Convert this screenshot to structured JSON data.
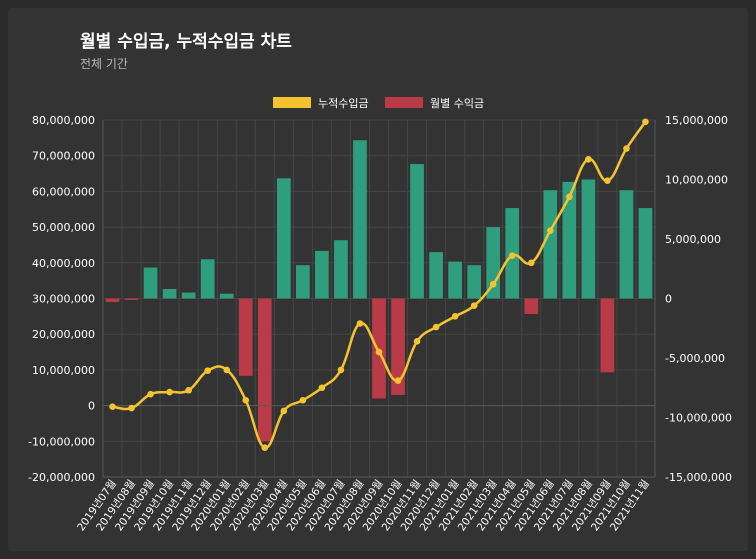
{
  "header": {
    "title": "월별 수입금, 누적수입금 차트",
    "subtitle": "전체 기간"
  },
  "chart_data": {
    "type": "bar+line",
    "categories": [
      "2019년07월",
      "2019년08월",
      "2019년09월",
      "2019년10월",
      "2019년11월",
      "2019년12월",
      "2020년01월",
      "2020년02월",
      "2020년03월",
      "2020년04월",
      "2020년05월",
      "2020년06월",
      "2020년07월",
      "2020년08월",
      "2020년09월",
      "2020년10월",
      "2020년11월",
      "2020년12월",
      "2021년01월",
      "2021년02월",
      "2021년03월",
      "2021년04월",
      "2021년05월",
      "2021년06월",
      "2021년07월",
      "2021년08월",
      "2021년09월",
      "2021년10월",
      "2021년11월"
    ],
    "series": [
      {
        "name": "누적수입금",
        "type": "line",
        "axis": "left",
        "color": "#f4c430",
        "values": [
          -300000,
          -700000,
          3200000,
          3800000,
          4300000,
          9800000,
          10000000,
          1500000,
          -11800000,
          -1500000,
          1500000,
          5000000,
          10000000,
          23000000,
          15000000,
          7000000,
          18000000,
          22000000,
          25000000,
          28000000,
          34000000,
          42000000,
          40000000,
          49000000,
          58500000,
          69000000,
          63000000,
          72000000,
          79500000
        ]
      },
      {
        "name": "월별 수익금",
        "type": "bar",
        "axis": "right",
        "color_positive": "#2e9e7e",
        "color_negative": "#b83b47",
        "values": [
          -300000,
          -100000,
          2600000,
          800000,
          500000,
          3300000,
          400000,
          -6500000,
          -12000000,
          10100000,
          2800000,
          4000000,
          4900000,
          13300000,
          -8400000,
          -8100000,
          11300000,
          3900000,
          3100000,
          2800000,
          6000000,
          7600000,
          -1300000,
          9100000,
          9800000,
          10000000,
          -6200000,
          9100000,
          7600000
        ]
      }
    ],
    "left_axis": {
      "min": -20000000,
      "max": 80000000,
      "step": 10000000,
      "tick_labels": [
        "-20,000,000",
        "-10,000,000",
        "0",
        "10,000,000",
        "20,000,000",
        "30,000,000",
        "40,000,000",
        "50,000,000",
        "60,000,000",
        "70,000,000",
        "80,000,000"
      ]
    },
    "right_axis": {
      "min": -15000000,
      "max": 15000000,
      "step": 5000000,
      "tick_labels": [
        "-15,000,000",
        "-10,000,000",
        "-5,000,000",
        "0",
        "5,000,000",
        "10,000,000",
        "15,000,000"
      ]
    },
    "legend": {
      "position": "top-center",
      "labels": [
        "누적수입금",
        "월별 수익금"
      ]
    },
    "grid": true
  }
}
